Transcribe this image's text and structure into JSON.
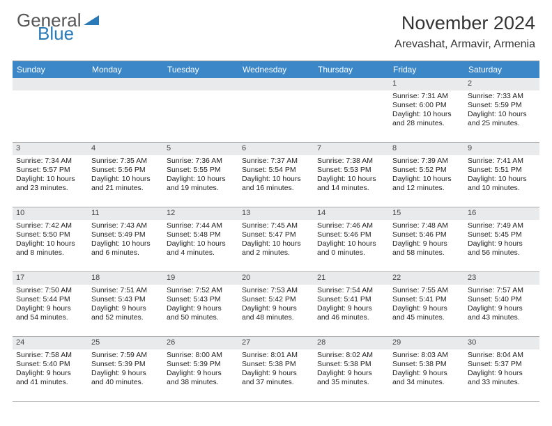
{
  "logo": {
    "part1": "General",
    "part2": "Blue"
  },
  "header": {
    "month_title": "November 2024",
    "location": "Arevashat, Armavir, Armenia"
  },
  "dayheads": [
    "Sunday",
    "Monday",
    "Tuesday",
    "Wednesday",
    "Thursday",
    "Friday",
    "Saturday"
  ],
  "colors": {
    "header_bg": "#3b87c8",
    "daynum_bg": "#e9eaec",
    "accent": "#2a7ab8"
  },
  "cells": [
    {
      "n": "",
      "empty": true
    },
    {
      "n": "",
      "empty": true
    },
    {
      "n": "",
      "empty": true
    },
    {
      "n": "",
      "empty": true
    },
    {
      "n": "",
      "empty": true
    },
    {
      "n": "1",
      "sr": "Sunrise: 7:31 AM",
      "ss": "Sunset: 6:00 PM",
      "dl1": "Daylight: 10 hours",
      "dl2": "and 28 minutes."
    },
    {
      "n": "2",
      "sr": "Sunrise: 7:33 AM",
      "ss": "Sunset: 5:59 PM",
      "dl1": "Daylight: 10 hours",
      "dl2": "and 25 minutes."
    },
    {
      "n": "3",
      "sr": "Sunrise: 7:34 AM",
      "ss": "Sunset: 5:57 PM",
      "dl1": "Daylight: 10 hours",
      "dl2": "and 23 minutes."
    },
    {
      "n": "4",
      "sr": "Sunrise: 7:35 AM",
      "ss": "Sunset: 5:56 PM",
      "dl1": "Daylight: 10 hours",
      "dl2": "and 21 minutes."
    },
    {
      "n": "5",
      "sr": "Sunrise: 7:36 AM",
      "ss": "Sunset: 5:55 PM",
      "dl1": "Daylight: 10 hours",
      "dl2": "and 19 minutes."
    },
    {
      "n": "6",
      "sr": "Sunrise: 7:37 AM",
      "ss": "Sunset: 5:54 PM",
      "dl1": "Daylight: 10 hours",
      "dl2": "and 16 minutes."
    },
    {
      "n": "7",
      "sr": "Sunrise: 7:38 AM",
      "ss": "Sunset: 5:53 PM",
      "dl1": "Daylight: 10 hours",
      "dl2": "and 14 minutes."
    },
    {
      "n": "8",
      "sr": "Sunrise: 7:39 AM",
      "ss": "Sunset: 5:52 PM",
      "dl1": "Daylight: 10 hours",
      "dl2": "and 12 minutes."
    },
    {
      "n": "9",
      "sr": "Sunrise: 7:41 AM",
      "ss": "Sunset: 5:51 PM",
      "dl1": "Daylight: 10 hours",
      "dl2": "and 10 minutes."
    },
    {
      "n": "10",
      "sr": "Sunrise: 7:42 AM",
      "ss": "Sunset: 5:50 PM",
      "dl1": "Daylight: 10 hours",
      "dl2": "and 8 minutes."
    },
    {
      "n": "11",
      "sr": "Sunrise: 7:43 AM",
      "ss": "Sunset: 5:49 PM",
      "dl1": "Daylight: 10 hours",
      "dl2": "and 6 minutes."
    },
    {
      "n": "12",
      "sr": "Sunrise: 7:44 AM",
      "ss": "Sunset: 5:48 PM",
      "dl1": "Daylight: 10 hours",
      "dl2": "and 4 minutes."
    },
    {
      "n": "13",
      "sr": "Sunrise: 7:45 AM",
      "ss": "Sunset: 5:47 PM",
      "dl1": "Daylight: 10 hours",
      "dl2": "and 2 minutes."
    },
    {
      "n": "14",
      "sr": "Sunrise: 7:46 AM",
      "ss": "Sunset: 5:46 PM",
      "dl1": "Daylight: 10 hours",
      "dl2": "and 0 minutes."
    },
    {
      "n": "15",
      "sr": "Sunrise: 7:48 AM",
      "ss": "Sunset: 5:46 PM",
      "dl1": "Daylight: 9 hours",
      "dl2": "and 58 minutes."
    },
    {
      "n": "16",
      "sr": "Sunrise: 7:49 AM",
      "ss": "Sunset: 5:45 PM",
      "dl1": "Daylight: 9 hours",
      "dl2": "and 56 minutes."
    },
    {
      "n": "17",
      "sr": "Sunrise: 7:50 AM",
      "ss": "Sunset: 5:44 PM",
      "dl1": "Daylight: 9 hours",
      "dl2": "and 54 minutes."
    },
    {
      "n": "18",
      "sr": "Sunrise: 7:51 AM",
      "ss": "Sunset: 5:43 PM",
      "dl1": "Daylight: 9 hours",
      "dl2": "and 52 minutes."
    },
    {
      "n": "19",
      "sr": "Sunrise: 7:52 AM",
      "ss": "Sunset: 5:43 PM",
      "dl1": "Daylight: 9 hours",
      "dl2": "and 50 minutes."
    },
    {
      "n": "20",
      "sr": "Sunrise: 7:53 AM",
      "ss": "Sunset: 5:42 PM",
      "dl1": "Daylight: 9 hours",
      "dl2": "and 48 minutes."
    },
    {
      "n": "21",
      "sr": "Sunrise: 7:54 AM",
      "ss": "Sunset: 5:41 PM",
      "dl1": "Daylight: 9 hours",
      "dl2": "and 46 minutes."
    },
    {
      "n": "22",
      "sr": "Sunrise: 7:55 AM",
      "ss": "Sunset: 5:41 PM",
      "dl1": "Daylight: 9 hours",
      "dl2": "and 45 minutes."
    },
    {
      "n": "23",
      "sr": "Sunrise: 7:57 AM",
      "ss": "Sunset: 5:40 PM",
      "dl1": "Daylight: 9 hours",
      "dl2": "and 43 minutes."
    },
    {
      "n": "24",
      "sr": "Sunrise: 7:58 AM",
      "ss": "Sunset: 5:40 PM",
      "dl1": "Daylight: 9 hours",
      "dl2": "and 41 minutes."
    },
    {
      "n": "25",
      "sr": "Sunrise: 7:59 AM",
      "ss": "Sunset: 5:39 PM",
      "dl1": "Daylight: 9 hours",
      "dl2": "and 40 minutes."
    },
    {
      "n": "26",
      "sr": "Sunrise: 8:00 AM",
      "ss": "Sunset: 5:39 PM",
      "dl1": "Daylight: 9 hours",
      "dl2": "and 38 minutes."
    },
    {
      "n": "27",
      "sr": "Sunrise: 8:01 AM",
      "ss": "Sunset: 5:38 PM",
      "dl1": "Daylight: 9 hours",
      "dl2": "and 37 minutes."
    },
    {
      "n": "28",
      "sr": "Sunrise: 8:02 AM",
      "ss": "Sunset: 5:38 PM",
      "dl1": "Daylight: 9 hours",
      "dl2": "and 35 minutes."
    },
    {
      "n": "29",
      "sr": "Sunrise: 8:03 AM",
      "ss": "Sunset: 5:38 PM",
      "dl1": "Daylight: 9 hours",
      "dl2": "and 34 minutes."
    },
    {
      "n": "30",
      "sr": "Sunrise: 8:04 AM",
      "ss": "Sunset: 5:37 PM",
      "dl1": "Daylight: 9 hours",
      "dl2": "and 33 minutes."
    }
  ]
}
